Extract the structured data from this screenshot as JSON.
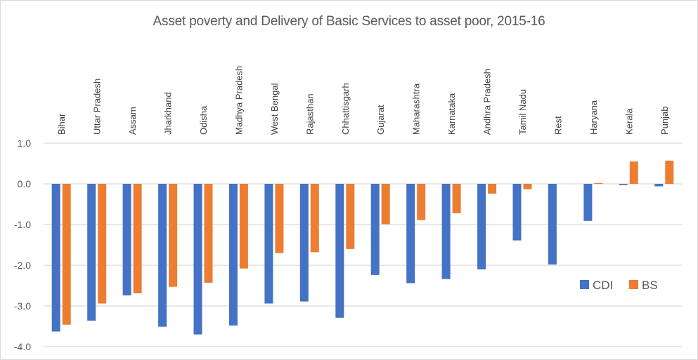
{
  "chart_data": {
    "type": "bar",
    "title": "Asset poverty and Delivery of Basic Services to asset poor,  2015-16",
    "xlabel": "",
    "ylabel": "",
    "ylim": [
      -4.0,
      1.0
    ],
    "yticks": [
      1.0,
      0.0,
      -1.0,
      -2.0,
      -3.0,
      -4.0
    ],
    "ytick_labels": [
      "1.0",
      "0.0",
      "-1.0",
      "-2.0",
      "-3.0",
      "-4.0"
    ],
    "grid": true,
    "legend_position": "bottom-right",
    "categories": [
      "Bihar",
      "Uttar Pradesh",
      "Assam",
      "Jharkhand",
      "Odisha",
      "Madhya Pradesh",
      "West Bengal",
      "Rajasthan",
      "Chhattisgarh",
      "Gujarat",
      "Maharashtra",
      "Karnataka",
      "Andhra Pradesh",
      "Tamil Nadu",
      "Rest",
      "Haryana",
      "Kerala",
      "Punjab"
    ],
    "series": [
      {
        "name": "CDI",
        "color": "#4472c4",
        "values": [
          -3.63,
          -3.36,
          -2.74,
          -3.51,
          -3.7,
          -3.48,
          -2.94,
          -2.89,
          -3.29,
          -2.24,
          -2.44,
          -2.34,
          -2.1,
          -1.39,
          -1.98,
          -0.91,
          -0.03,
          -0.06
        ]
      },
      {
        "name": "BS",
        "color": "#ed7d31",
        "values": [
          -3.46,
          -2.94,
          -2.69,
          -2.53,
          -2.43,
          -2.08,
          -1.7,
          -1.68,
          -1.6,
          -0.99,
          -0.89,
          -0.72,
          -0.24,
          -0.13,
          null,
          0.02,
          0.55,
          0.57
        ]
      }
    ]
  },
  "colors": {
    "gridline": "#d9d9d9",
    "text": "#595959",
    "border": "#d9d9d9"
  }
}
